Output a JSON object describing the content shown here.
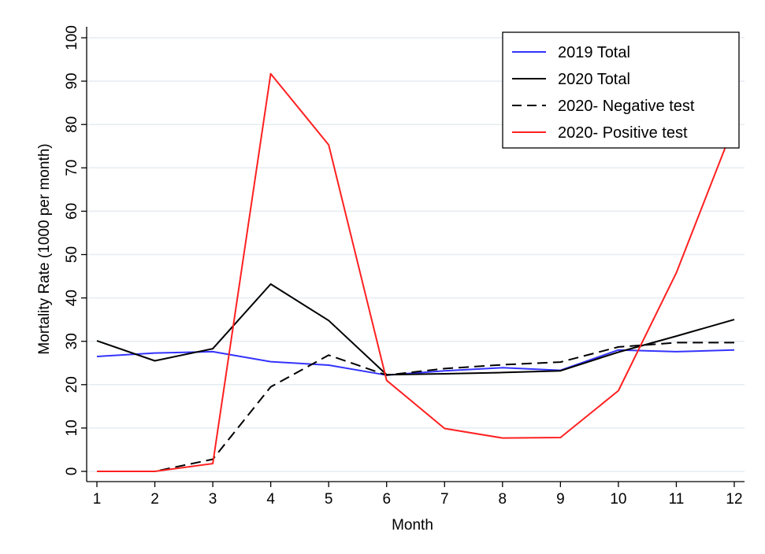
{
  "chart_data": {
    "type": "line",
    "title": "",
    "xlabel": "Month",
    "ylabel": "Mortality Rate (1000 per month)",
    "x": [
      1,
      2,
      3,
      4,
      5,
      6,
      7,
      8,
      9,
      10,
      11,
      12
    ],
    "x_ticks": [
      "1",
      "2",
      "3",
      "4",
      "5",
      "6",
      "7",
      "8",
      "9",
      "10",
      "11",
      "12"
    ],
    "xlim": [
      1,
      12
    ],
    "ylim": [
      0,
      100
    ],
    "y_ticks": [
      "0",
      "10",
      "20",
      "30",
      "40",
      "50",
      "60",
      "70",
      "80",
      "90",
      "100"
    ],
    "grid": true,
    "legend_position": "top-right",
    "series": [
      {
        "name": "2019 Total",
        "color": "#3333ff",
        "dash": "solid",
        "values": [
          26.5,
          27.3,
          27.6,
          25.3,
          24.5,
          22.2,
          23.2,
          23.9,
          23.3,
          28.0,
          27.6,
          28.0
        ]
      },
      {
        "name": "2020 Total",
        "color": "#000000",
        "dash": "solid",
        "values": [
          30.1,
          25.5,
          28.3,
          43.2,
          34.8,
          22.3,
          22.5,
          22.8,
          23.2,
          27.5,
          31.2,
          35.0
        ]
      },
      {
        "name": "2020- Negative test",
        "color": "#000000",
        "dash": "dashed",
        "values": [
          0.0,
          0.0,
          2.8,
          19.5,
          26.8,
          22.2,
          23.7,
          24.6,
          25.2,
          28.7,
          29.7,
          29.7
        ]
      },
      {
        "name": "2020- Positive test",
        "color": "#ff2020",
        "dash": "solid",
        "values": [
          0.0,
          0.0,
          1.8,
          91.7,
          75.3,
          21.0,
          9.9,
          7.7,
          7.8,
          18.6,
          45.8,
          80.0
        ]
      }
    ]
  }
}
